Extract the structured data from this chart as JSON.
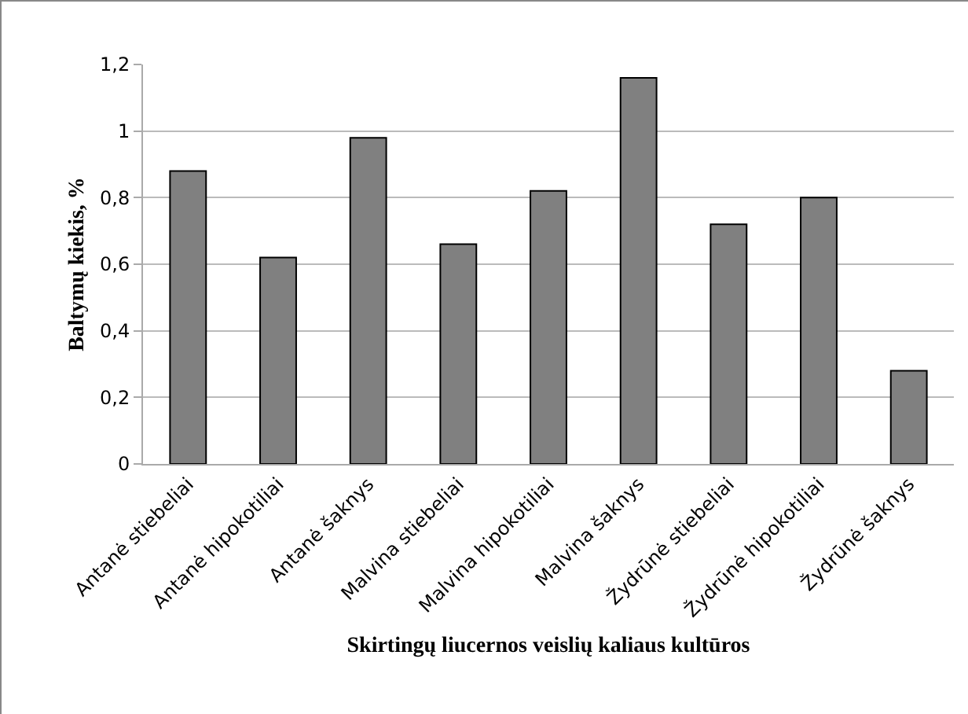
{
  "chart_data": {
    "type": "bar",
    "xlabel": "Skirtingų liucernos veislių kaliaus kultūros",
    "ylabel": "Baltymų kiekis, %",
    "categories": [
      "Antanė stiebeliai",
      "Antanė hipokotiliai",
      "Antanė šaknys",
      "Malvina stiebeliai",
      "Malvina hipokotiliai",
      "Malvina šaknys",
      "Žydrūnė stiebeliai",
      "Žydrūnė hipokotiliai",
      "Žydrūnė šaknys"
    ],
    "values": [
      0.88,
      0.62,
      0.98,
      0.66,
      0.82,
      1.16,
      0.72,
      0.8,
      0.28
    ],
    "color": "#808080",
    "ylim": [
      0,
      1.2
    ],
    "yticks": [
      0,
      {
        "value": 0.2,
        "label": "0,2"
      },
      {
        "value": 0.4,
        "label": "0,4"
      },
      {
        "value": 0.6,
        "label": "0,6"
      },
      {
        "value": 0.8,
        "label": "0,8"
      },
      1,
      {
        "value": 1.2,
        "label": "1,2"
      }
    ],
    "grid": "y"
  }
}
